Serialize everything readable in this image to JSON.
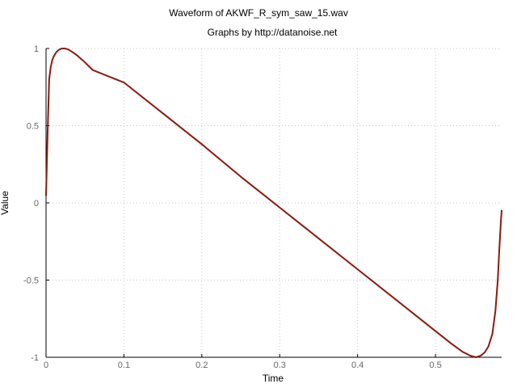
{
  "chart_data": {
    "type": "line",
    "title": "Waveform of AKWF_R_sym_saw_15.wav",
    "subtitle": "Graphs by http://datanoise.net",
    "xlabel": "Time",
    "ylabel": "Value",
    "xlim": [
      0,
      0.585
    ],
    "ylim": [
      -1,
      1
    ],
    "xticks": [
      0,
      0.1,
      0.2,
      0.3,
      0.4,
      0.5
    ],
    "xtick_labels": [
      "0",
      "0.1",
      "0.2",
      "0.3",
      "0.4",
      "0.5"
    ],
    "yticks": [
      -1,
      -0.5,
      0,
      0.5,
      1
    ],
    "ytick_labels": [
      "-1",
      "-0.5",
      "0",
      "0.5",
      "1"
    ],
    "grid": true,
    "line_color": "#8b1a0e",
    "series": [
      {
        "x": [
          0,
          0.002,
          0.004,
          0.006,
          0.008,
          0.01,
          0.013,
          0.016,
          0.02,
          0.024,
          0.028,
          0.033,
          0.04,
          0.05,
          0.06,
          0.1,
          0.15,
          0.2,
          0.25,
          0.3,
          0.35,
          0.4,
          0.45,
          0.5,
          0.52,
          0.535,
          0.545,
          0.552,
          0.558,
          0.563,
          0.568,
          0.573,
          0.577,
          0.58,
          0.582,
          0.584,
          0.585
        ],
        "y": [
          0.05,
          0.45,
          0.8,
          0.88,
          0.925,
          0.95,
          0.975,
          0.99,
          1.0,
          1.0,
          0.995,
          0.98,
          0.955,
          0.91,
          0.86,
          0.78,
          0.58,
          0.38,
          0.17,
          -0.03,
          -0.23,
          -0.43,
          -0.63,
          -0.83,
          -0.91,
          -0.965,
          -0.99,
          -1.0,
          -0.99,
          -0.97,
          -0.93,
          -0.85,
          -0.7,
          -0.5,
          -0.3,
          -0.12,
          -0.05
        ]
      }
    ]
  }
}
